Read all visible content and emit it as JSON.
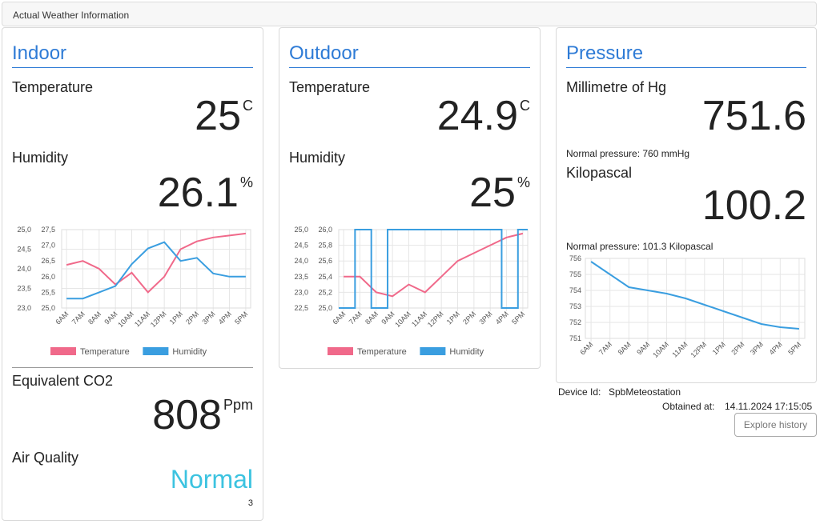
{
  "header": {
    "title": "Actual Weather Information"
  },
  "indoor": {
    "title": "Indoor",
    "temperature_label": "Temperature",
    "temperature_value": "25",
    "temperature_unit": "C",
    "humidity_label": "Humidity",
    "humidity_value": "26.1",
    "humidity_unit": "%",
    "co2_label": "Equivalent CO2",
    "co2_value": "808",
    "co2_unit": "Ppm",
    "air_quality_label": "Air Quality",
    "air_quality_value": "Normal",
    "air_quality_index": "3",
    "colors": {
      "air_quality": "#3cc3e0"
    }
  },
  "outdoor": {
    "title": "Outdoor",
    "temperature_label": "Temperature",
    "temperature_value": "24.9",
    "temperature_unit": "C",
    "humidity_label": "Humidity",
    "humidity_value": "25",
    "humidity_unit": "%"
  },
  "pressure": {
    "title": "Pressure",
    "mmhg_label": "Millimetre of Hg",
    "mmhg_value": "751.6",
    "mmhg_normal": "Normal pressure: 760 mmHg",
    "kpa_label": "Kilopascal",
    "kpa_value": "100.2",
    "kpa_normal": "Normal pressure: 101.3 Kilopascal"
  },
  "device": {
    "id_label": "Device Id:",
    "id_value": "SpbMeteostation",
    "obtained_label": "Obtained at:",
    "obtained_value": "14.11.2024 17:15:05",
    "history_button": "Explore history"
  },
  "colors": {
    "temperature": "#f0698a",
    "humidity": "#3a9ee0",
    "pressure": "#3a9ee0",
    "accent": "#2e7bd6"
  },
  "chart_data": [
    {
      "id": "indoor_chart",
      "type": "line",
      "x": [
        "6AM",
        "7AM",
        "8AM",
        "9AM",
        "10AM",
        "11AM",
        "12PM",
        "1PM",
        "2PM",
        "3PM",
        "4PM",
        "5PM"
      ],
      "series": [
        {
          "name": "Temperature",
          "axis": "left",
          "values": [
            24.1,
            24.2,
            24.0,
            23.6,
            23.9,
            23.4,
            23.8,
            24.5,
            24.7,
            24.8,
            24.85,
            24.9
          ]
        },
        {
          "name": "Humidity",
          "axis": "right",
          "values": [
            25.3,
            25.3,
            25.5,
            25.7,
            26.4,
            26.9,
            27.1,
            26.5,
            26.6,
            26.1,
            26.0,
            26.0
          ]
        }
      ],
      "y_left": {
        "range": [
          23.0,
          25.0
        ],
        "ticks": [
          "23,0",
          "23,5",
          "24,0",
          "24,5",
          "25,0"
        ]
      },
      "y_right": {
        "range": [
          25.0,
          27.5
        ],
        "ticks": [
          "25,0",
          "25,5",
          "26,0",
          "26,5",
          "27,0",
          "27,5"
        ]
      },
      "legend": "bottom"
    },
    {
      "id": "outdoor_chart",
      "type": "line",
      "x": [
        "6AM",
        "7AM",
        "8AM",
        "9AM",
        "10AM",
        "11AM",
        "12PM",
        "1PM",
        "2PM",
        "3PM",
        "4PM",
        "5PM"
      ],
      "series": [
        {
          "name": "Temperature",
          "axis": "right",
          "values": [
            25.4,
            25.4,
            25.2,
            25.15,
            25.3,
            25.2,
            25.4,
            25.6,
            25.7,
            25.8,
            25.9,
            25.95
          ]
        },
        {
          "name": "Humidity",
          "axis": "left",
          "values": [
            22.5,
            25.0,
            22.5,
            25.0,
            25.0,
            25.0,
            25.0,
            25.0,
            25.0,
            25.0,
            22.5,
            25.0
          ]
        }
      ],
      "y_left": {
        "range": [
          22.5,
          25.0
        ],
        "ticks": [
          "22,5",
          "23,0",
          "23,5",
          "24,0",
          "24,5",
          "25,0"
        ]
      },
      "y_right": {
        "range": [
          25.0,
          26.0
        ],
        "ticks": [
          "25,0",
          "25,2",
          "25,4",
          "25,6",
          "25,8",
          "26,0"
        ]
      },
      "legend": "bottom"
    },
    {
      "id": "pressure_chart",
      "type": "line",
      "x": [
        "6AM",
        "7AM",
        "8AM",
        "9AM",
        "10AM",
        "11AM",
        "12PM",
        "1PM",
        "2PM",
        "3PM",
        "4PM",
        "5PM"
      ],
      "series": [
        {
          "name": "",
          "axis": "left",
          "values": [
            755.8,
            755.0,
            754.2,
            754.0,
            753.8,
            753.5,
            753.1,
            752.7,
            752.3,
            751.9,
            751.7,
            751.6
          ]
        }
      ],
      "y_left": {
        "range": [
          751,
          756
        ],
        "ticks": [
          "751",
          "752",
          "753",
          "754",
          "755",
          "756"
        ]
      }
    }
  ]
}
